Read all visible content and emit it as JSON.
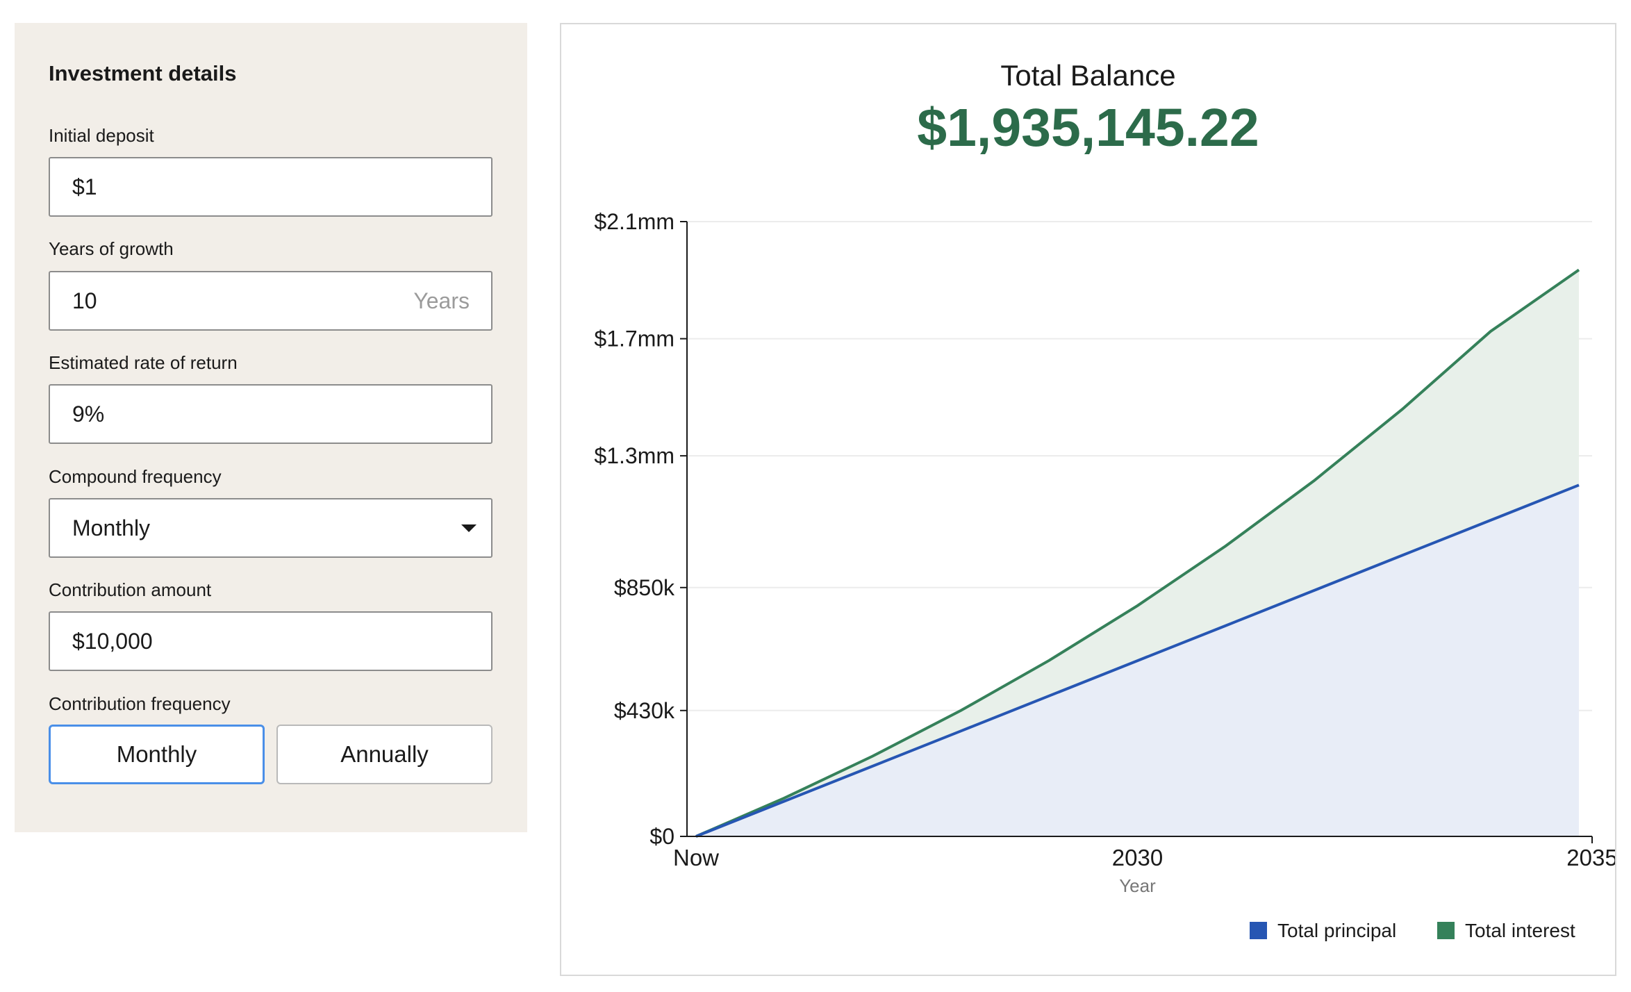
{
  "form": {
    "title": "Investment details",
    "initial_deposit": {
      "label": "Initial deposit",
      "value": "$1"
    },
    "years": {
      "label": "Years of growth",
      "value": "10",
      "suffix": "Years"
    },
    "rate": {
      "label": "Estimated rate of return",
      "value": "9%"
    },
    "compound": {
      "label": "Compound frequency",
      "value": "Monthly",
      "icon": "chevron-down-icon"
    },
    "contribution": {
      "label": "Contribution amount",
      "value": "$10,000"
    },
    "contribution_frequency": {
      "label": "Contribution frequency",
      "options": [
        "Monthly",
        "Annually"
      ],
      "selected": "Monthly"
    }
  },
  "summary": {
    "label": "Total Balance",
    "value": "$1,935,145.22"
  },
  "colors": {
    "principal": "#2656b3",
    "interest": "#35815a",
    "principal_fill": "#e8edf7",
    "interest_fill": "#e8f0ea",
    "accent_green": "#2c6b4a",
    "selected_border": "#4a8fe8"
  },
  "chart_data": {
    "type": "area",
    "x": [
      0,
      1,
      2,
      3,
      4,
      5,
      6,
      7,
      8,
      9,
      10
    ],
    "x_tick_labels": [
      {
        "x": 0,
        "label": "Now"
      },
      {
        "x": 5,
        "label": "2030"
      },
      {
        "x": 10,
        "label": "2035"
      }
    ],
    "xlabel": "Year",
    "y_ticks": [
      0,
      430000,
      850000,
      1300000,
      1700000,
      2100000
    ],
    "y_tick_labels": [
      "$0",
      "$430k",
      "$850k",
      "$1.3mm",
      "$1.7mm",
      "$2.1mm"
    ],
    "ylim": [
      0,
      2100000
    ],
    "grid": true,
    "legend_position": "bottom-right",
    "series": [
      {
        "name": "Total principal",
        "values": [
          0,
          120000,
          240000,
          360000,
          480000,
          600000,
          720000,
          840000,
          960000,
          1080000,
          1200000
        ]
      },
      {
        "name": "Total interest",
        "values": [
          0,
          131000,
          274000,
          430000,
          601000,
          788000,
          992000,
          1215000,
          1459000,
          1725000,
          1935145
        ]
      }
    ]
  }
}
